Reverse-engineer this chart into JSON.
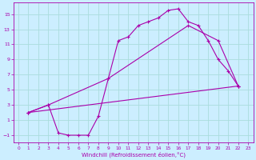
{
  "xlabel": "Windchill (Refroidissement éolien,°C)",
  "background_color": "#cceeff",
  "grid_color": "#aadddd",
  "line_color": "#aa00aa",
  "xlim": [
    -0.5,
    23.5
  ],
  "ylim": [
    -2,
    16.5
  ],
  "xticks": [
    0,
    1,
    2,
    3,
    4,
    5,
    6,
    7,
    8,
    9,
    10,
    11,
    12,
    13,
    14,
    15,
    16,
    17,
    18,
    19,
    20,
    21,
    22,
    23
  ],
  "yticks": [
    -1,
    1,
    3,
    5,
    7,
    9,
    11,
    13,
    15
  ],
  "curve1_x": [
    1,
    3,
    4,
    5,
    6,
    7,
    8,
    9,
    10,
    11,
    12,
    13,
    14,
    15,
    16,
    17,
    18,
    19,
    20,
    21,
    22
  ],
  "curve1_y": [
    2,
    3,
    -0.7,
    -1.0,
    -1.0,
    -1.0,
    1.5,
    6.5,
    11.5,
    12.0,
    13.5,
    14.0,
    14.5,
    15.5,
    15.7,
    14.0,
    13.5,
    11.5,
    9.0,
    7.5,
    5.5
  ],
  "curve2_x": [
    1,
    3,
    9,
    17,
    20,
    22
  ],
  "curve2_y": [
    2.0,
    3.0,
    6.5,
    13.5,
    11.5,
    5.5
  ],
  "curve3_x": [
    1,
    22
  ],
  "curve3_y": [
    2.0,
    5.5
  ]
}
